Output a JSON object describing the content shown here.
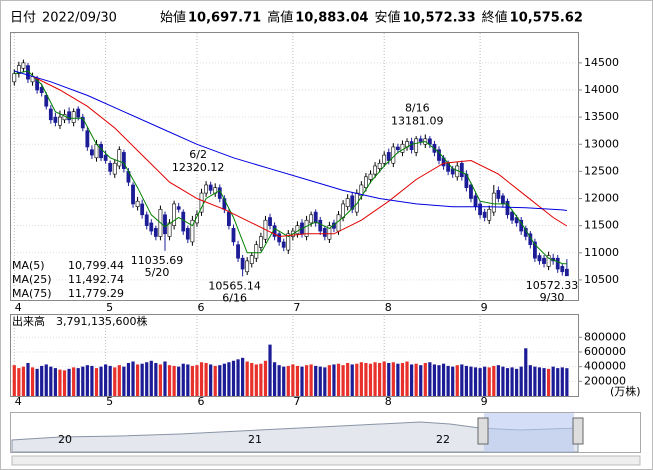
{
  "header": {
    "date_label": "日付",
    "date": "2022/09/30",
    "items": [
      {
        "label": "始値",
        "value": "10,697.71",
        "color": "#000000"
      },
      {
        "label": "高値",
        "value": "10,883.04",
        "color": "#e00000"
      },
      {
        "label": "安値",
        "value": "10,572.33",
        "color": "#008000"
      },
      {
        "label": "終値",
        "value": "10,575.62",
        "color": "#000000"
      }
    ]
  },
  "chart_data": [
    {
      "type": "candlestick",
      "up_color": "#ffffff",
      "down_color": "#1c1c96",
      "grid": true,
      "ylim": [
        10130,
        15050
      ],
      "yticks": [
        10500,
        11000,
        11500,
        12000,
        12500,
        13000,
        13500,
        14000,
        14500
      ],
      "xlim": [
        -0.5,
        123
      ],
      "xticks": [
        {
          "value": 0,
          "label": "4"
        },
        {
          "value": 20,
          "label": "5"
        },
        {
          "value": 40,
          "label": "6"
        },
        {
          "value": 61,
          "label": "7"
        },
        {
          "value": 81,
          "label": "8"
        },
        {
          "value": 102,
          "label": "9"
        }
      ],
      "open": [
        14150,
        14300,
        14400,
        14450,
        14150,
        14200,
        14050,
        13900,
        13650,
        13500,
        13350,
        13450,
        13600,
        13400,
        13650,
        13500,
        13250,
        12900,
        12750,
        13000,
        12800,
        12650,
        12450,
        12600,
        12850,
        12500,
        12250,
        11850,
        11900,
        11700,
        11550,
        11450,
        11300,
        11700,
        11300,
        11500,
        11850,
        11750,
        11450,
        11200,
        11550,
        11750,
        12100,
        12250,
        12100,
        12200,
        12000,
        11750,
        11450,
        11150,
        10900,
        10650,
        10800,
        10900,
        11100,
        11250,
        11650,
        11500,
        11350,
        11200,
        11050,
        11300,
        11350,
        11550,
        11300,
        11550,
        11750,
        11600,
        11450,
        11250,
        11550,
        11400,
        11650,
        11850,
        12050,
        11750,
        12050,
        12200,
        12350,
        12450,
        12550,
        12650,
        12850,
        12650,
        12950,
        12850,
        12950,
        13050,
        12850,
        13100,
        13000,
        13100,
        13000,
        12900,
        12750,
        12650,
        12550,
        12400,
        12650,
        12450,
        12250,
        12050,
        11900,
        11750,
        11600,
        11750,
        12150,
        12050,
        11950,
        11750,
        11650,
        11600,
        11450,
        11350,
        11200,
        10950,
        10900,
        10750,
        10900,
        10900,
        10750,
        10697.71
      ],
      "high": [
        14380,
        14520,
        14560,
        14500,
        14320,
        14260,
        14120,
        13960,
        13720,
        13580,
        13620,
        13640,
        13680,
        13660,
        13700,
        13560,
        13320,
        12980,
        13080,
        13050,
        12880,
        12700,
        12720,
        12960,
        12900,
        12560,
        12300,
        12030,
        11980,
        11760,
        11620,
        11500,
        11870,
        11760,
        11620,
        11960,
        11920,
        11800,
        11500,
        11680,
        11780,
        12180,
        12320.12,
        12310,
        12280,
        12260,
        12060,
        11820,
        11520,
        11220,
        10960,
        10920,
        11010,
        11220,
        11370,
        11680,
        11720,
        11560,
        11400,
        11260,
        11420,
        11460,
        11580,
        11620,
        11680,
        11760,
        11800,
        11660,
        11500,
        11570,
        11610,
        11770,
        11970,
        12080,
        12110,
        12170,
        12320,
        12470,
        12520,
        12670,
        12720,
        12870,
        12920,
        13020,
        13010,
        13070,
        13110,
        13120,
        13150,
        13160,
        13181.09,
        13150,
        13060,
        12960,
        12800,
        12700,
        12600,
        12680,
        12700,
        12520,
        12300,
        12100,
        11960,
        11810,
        11870,
        12250,
        12220,
        12100,
        12000,
        11800,
        11700,
        11660,
        11500,
        11400,
        11260,
        11000,
        10960,
        11020,
        10980,
        10960,
        10800,
        10883.04
      ],
      "low": [
        14080,
        14230,
        14340,
        14130,
        14080,
        13930,
        13880,
        13640,
        13380,
        13330,
        13280,
        13390,
        13380,
        13330,
        13440,
        13240,
        12880,
        12730,
        12680,
        12690,
        12640,
        12430,
        12380,
        12540,
        12480,
        12230,
        11830,
        11780,
        11630,
        11430,
        11330,
        11230,
        11230,
        11035.69,
        11230,
        11430,
        11740,
        11330,
        11180,
        11130,
        11480,
        11680,
        12030,
        12080,
        12030,
        11930,
        11730,
        11430,
        11130,
        10830,
        10565.14,
        10590,
        10730,
        10830,
        11030,
        11180,
        11430,
        11230,
        11130,
        11030,
        10980,
        11230,
        11280,
        11280,
        11230,
        11480,
        11480,
        11330,
        11230,
        11180,
        11380,
        11330,
        11580,
        11780,
        11730,
        11680,
        11980,
        12130,
        12280,
        12380,
        12480,
        12580,
        12630,
        12580,
        12830,
        12780,
        12880,
        12830,
        12780,
        12980,
        12930,
        12930,
        12780,
        12630,
        12530,
        12430,
        12380,
        12330,
        12330,
        12130,
        11930,
        11780,
        11630,
        11580,
        11530,
        11680,
        11930,
        11830,
        11630,
        11530,
        11480,
        11330,
        11230,
        11080,
        10830,
        10780,
        10730,
        10680,
        10780,
        10630,
        10580,
        10572.33
      ],
      "close": [
        14300,
        14450,
        14500,
        14200,
        14250,
        14000,
        13950,
        13700,
        13450,
        13400,
        13500,
        13550,
        13450,
        13600,
        13500,
        13300,
        12950,
        12800,
        13000,
        12750,
        12700,
        12500,
        12650,
        12900,
        12550,
        12300,
        11900,
        11950,
        11700,
        11500,
        11400,
        11300,
        11800,
        11350,
        11550,
        11900,
        11800,
        11400,
        11250,
        11600,
        11700,
        12100,
        12250,
        12150,
        12200,
        12000,
        11800,
        11500,
        11200,
        10900,
        10700,
        10850,
        10950,
        11150,
        11300,
        11600,
        11500,
        11300,
        11200,
        11100,
        11350,
        11400,
        11500,
        11350,
        11600,
        11700,
        11550,
        11400,
        11300,
        11500,
        11450,
        11700,
        11900,
        12000,
        11800,
        12100,
        12250,
        12400,
        12450,
        12600,
        12650,
        12800,
        12700,
        12950,
        12900,
        13000,
        13050,
        12900,
        13100,
        13050,
        13100,
        13000,
        12850,
        12700,
        12600,
        12500,
        12450,
        12600,
        12400,
        12200,
        12000,
        11850,
        11700,
        11650,
        11800,
        12100,
        12000,
        11900,
        11700,
        11600,
        11550,
        11400,
        11300,
        11150,
        10900,
        10850,
        10800,
        10950,
        10850,
        10700,
        10650,
        10575.62
      ],
      "series": [
        {
          "name": "MA(5)",
          "color": "#008000",
          "legend_value": "10,799.44",
          "x": [
            0,
            3,
            6,
            9,
            12,
            15,
            18,
            21,
            24,
            27,
            30,
            33,
            36,
            39,
            42,
            45,
            48,
            51,
            54,
            57,
            60,
            63,
            66,
            69,
            72,
            75,
            78,
            81,
            84,
            87,
            90,
            93,
            96,
            99,
            102,
            105,
            108,
            111,
            114,
            117,
            120,
            121
          ],
          "values": [
            14300,
            14350,
            14100,
            13600,
            13480,
            13480,
            13000,
            12750,
            12650,
            12200,
            11700,
            11480,
            11650,
            11500,
            12000,
            12150,
            11650,
            11000,
            11000,
            11450,
            11300,
            11450,
            11570,
            11450,
            11650,
            11900,
            12300,
            12600,
            12850,
            13000,
            13050,
            12850,
            12550,
            12450,
            11950,
            11900,
            11900,
            11550,
            11150,
            10900,
            10800,
            10799.44
          ]
        },
        {
          "name": "MA(25)",
          "color": "#e00000",
          "legend_value": "11,492.74",
          "x": [
            4,
            10,
            16,
            22,
            28,
            34,
            40,
            46,
            52,
            58,
            64,
            70,
            76,
            82,
            88,
            94,
            100,
            106,
            112,
            118,
            121
          ],
          "values": [
            14250,
            14000,
            13700,
            13300,
            12800,
            12300,
            12000,
            11800,
            11550,
            11300,
            11350,
            11350,
            11600,
            11950,
            12350,
            12650,
            12700,
            12450,
            12050,
            11650,
            11492.74
          ]
        },
        {
          "name": "MA(75)",
          "color": "#0000e0",
          "legend_value": "11,779.29",
          "x": [
            0,
            8,
            16,
            24,
            32,
            40,
            48,
            56,
            64,
            72,
            80,
            88,
            96,
            104,
            112,
            120,
            121
          ],
          "values": [
            14350,
            14150,
            13900,
            13600,
            13300,
            13000,
            12750,
            12550,
            12350,
            12150,
            12000,
            11900,
            11850,
            11850,
            11830,
            11790,
            11779.29
          ]
        }
      ],
      "annotations": [
        {
          "date": "5/20",
          "value": 11035.69,
          "index": 33,
          "position": "below"
        },
        {
          "date": "6/2",
          "value": 12320.12,
          "index": 42,
          "position": "above"
        },
        {
          "date": "6/16",
          "value": 10565.14,
          "index": 50,
          "position": "below"
        },
        {
          "date": "8/16",
          "value": 13181.09,
          "index": 90,
          "position": "above"
        },
        {
          "date": "9/30",
          "value": 10572.33,
          "index": 121,
          "position": "below"
        }
      ]
    },
    {
      "type": "bar",
      "label": "出来高",
      "value_label": "3,791,135,600株",
      "unit_label": "(万株)",
      "up_color": "#e8312a",
      "down_color": "#1c1c96",
      "ylim": [
        0,
        1090000
      ],
      "yticks": [
        200000,
        400000,
        600000,
        800000
      ],
      "xlim": [
        -0.5,
        123
      ],
      "xticks": [
        {
          "value": 0,
          "label": "4"
        },
        {
          "value": 20,
          "label": "5"
        },
        {
          "value": 40,
          "label": "6"
        },
        {
          "value": 61,
          "label": "7"
        },
        {
          "value": 81,
          "label": "8"
        },
        {
          "value": 102,
          "label": "9"
        }
      ],
      "values": [
        420000,
        380000,
        400000,
        450000,
        390000,
        370000,
        410000,
        430000,
        400000,
        380000,
        360000,
        350000,
        370000,
        390000,
        380000,
        400000,
        420000,
        410000,
        380000,
        400000,
        430000,
        410000,
        390000,
        420000,
        400000,
        450000,
        470000,
        430000,
        440000,
        460000,
        480000,
        450000,
        430000,
        470000,
        420000,
        410000,
        400000,
        440000,
        430000,
        410000,
        420000,
        460000,
        450000,
        430000,
        410000,
        420000,
        440000,
        460000,
        480000,
        500000,
        520000,
        470000,
        450000,
        430000,
        440000,
        480000,
        700000,
        460000,
        420000,
        400000,
        410000,
        430000,
        410000,
        400000,
        420000,
        430000,
        410000,
        400000,
        390000,
        420000,
        430000,
        440000,
        420000,
        450000,
        430000,
        440000,
        460000,
        450000,
        440000,
        460000,
        450000,
        470000,
        450000,
        460000,
        440000,
        450000,
        470000,
        430000,
        440000,
        420000,
        450000,
        460000,
        430000,
        420000,
        440000,
        410000,
        400000,
        420000,
        430000,
        410000,
        400000,
        390000,
        380000,
        400000,
        390000,
        410000,
        420000,
        400000,
        380000,
        390000,
        370000,
        400000,
        650000,
        420000,
        400000,
        390000,
        380000,
        370000,
        400000,
        380000,
        390000,
        379113.56
      ]
    }
  ],
  "navigator": {
    "labels": [
      "20",
      "21",
      "22"
    ]
  }
}
